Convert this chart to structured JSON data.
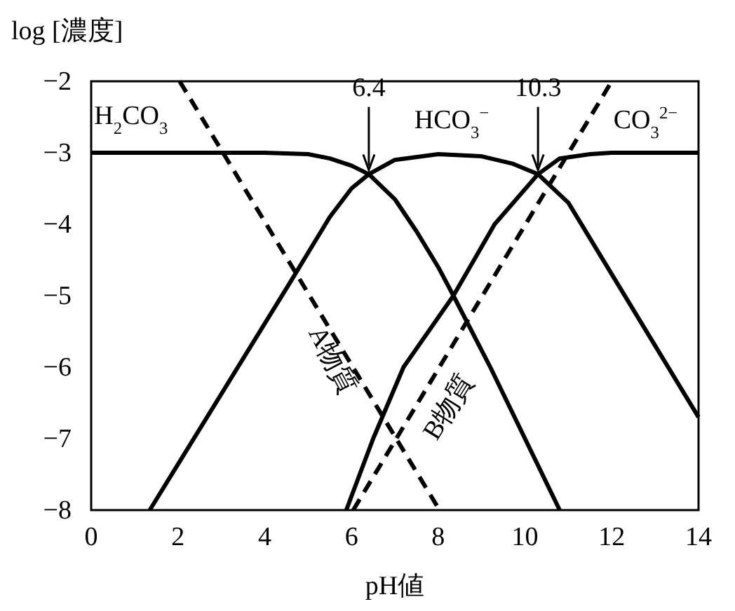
{
  "chart_data": {
    "type": "line",
    "xlabel": "pH値",
    "ylabel": "log [濃度]",
    "xlim": [
      0,
      14
    ],
    "ylim": [
      -8,
      -2
    ],
    "xticks": [
      0,
      2,
      4,
      6,
      8,
      10,
      12,
      14
    ],
    "yticks": [
      -8,
      -7,
      -6,
      -5,
      -4,
      -3,
      -2
    ],
    "grid": false,
    "marker": "none",
    "series": [
      {
        "name": "H$_{2}$CO$_{3}$",
        "color": "#000000",
        "line_style": "solid",
        "x": [
          0,
          4,
          5,
          5.5,
          6,
          6.4,
          7,
          7.5,
          8,
          8.35,
          9.2,
          10,
          10.8
        ],
        "values": [
          -3,
          -3,
          -3.02,
          -3.08,
          -3.18,
          -3.3,
          -3.65,
          -4.1,
          -4.6,
          -5,
          -6,
          -7,
          -8
        ]
      },
      {
        "name": "HCO$_{3}$$^{−}$",
        "color": "#000000",
        "line_style": "solid",
        "x": [
          1.35,
          4.6,
          5,
          5.5,
          6,
          6.4,
          7,
          8,
          9,
          9.7,
          10.3,
          11,
          11.5,
          12,
          12.5,
          13,
          14
        ],
        "values": [
          -8,
          -4.8,
          -4.4,
          -3.9,
          -3.5,
          -3.3,
          -3.1,
          -3.02,
          -3.05,
          -3.15,
          -3.3,
          -3.7,
          -4.2,
          -4.7,
          -5.2,
          -5.7,
          -6.7
        ]
      },
      {
        "name": "CO$_{3}$$^{2−}$",
        "color": "#000000",
        "line_style": "solid",
        "x": [
          5.88,
          6.5,
          7.2,
          8.35,
          9.3,
          10.3,
          10.8,
          11.5,
          12,
          14
        ],
        "values": [
          -8,
          -7,
          -6,
          -5,
          -4,
          -3.3,
          -3.08,
          -3.02,
          -3,
          -3
        ]
      },
      {
        "name": "A物質",
        "color": "#000000",
        "line_style": "dashed",
        "x": [
          2.04,
          8.03
        ],
        "values": [
          -2,
          -8
        ]
      },
      {
        "name": "B物質",
        "color": "#000000",
        "line_style": "dashed",
        "x": [
          6.04,
          12
        ],
        "values": [
          -8,
          -2
        ]
      }
    ],
    "annotations": [
      {
        "text": "6.4",
        "x": 6.4,
        "y": -3.3
      },
      {
        "text": "10.3",
        "x": 10.3,
        "y": -3.3
      }
    ]
  }
}
